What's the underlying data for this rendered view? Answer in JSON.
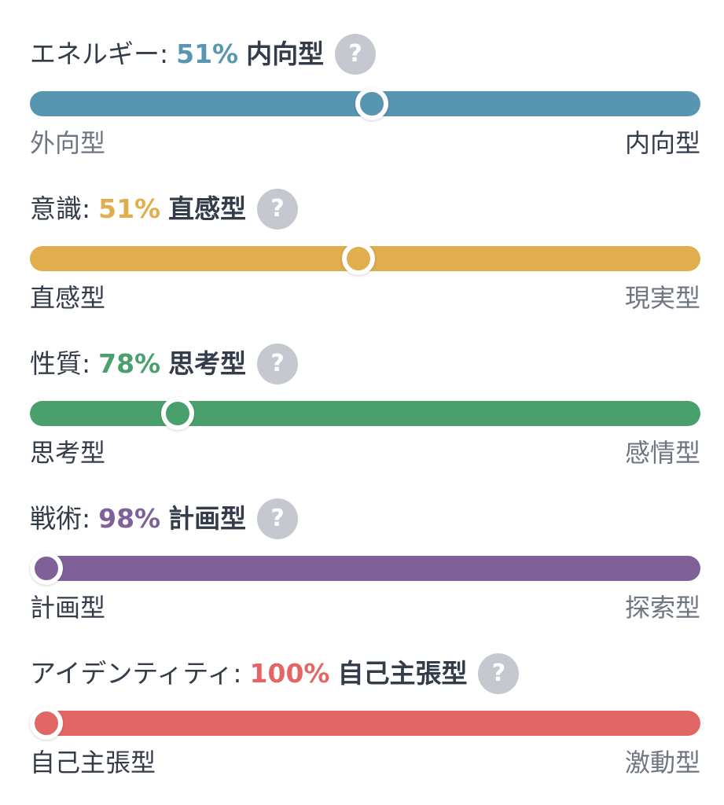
{
  "traits": [
    {
      "name": "エネルギー",
      "colon": ":",
      "percent": "51%",
      "percent_value": 51,
      "type": "内向型",
      "left_label": "外向型",
      "right_label": "内向型",
      "active_side": "right",
      "marker_fraction": 0.51,
      "color": "#5895b1",
      "help_icon": "question-mark-icon"
    },
    {
      "name": "意識",
      "colon": ":",
      "percent": "51%",
      "percent_value": 51,
      "type": "直感型",
      "left_label": "直感型",
      "right_label": "現実型",
      "active_side": "left",
      "marker_fraction": 0.49,
      "color": "#e0ae4c",
      "help_icon": "question-mark-icon"
    },
    {
      "name": "性質",
      "colon": ":",
      "percent": "78%",
      "percent_value": 78,
      "type": "思考型",
      "left_label": "思考型",
      "right_label": "感情型",
      "active_side": "left",
      "marker_fraction": 0.22,
      "color": "#4aa06d",
      "help_icon": "question-mark-icon"
    },
    {
      "name": "戦術",
      "colon": ":",
      "percent": "98%",
      "percent_value": 98,
      "type": "計画型",
      "left_label": "計画型",
      "right_label": "探索型",
      "active_side": "left",
      "marker_fraction": 0.02,
      "color": "#7f6197",
      "help_icon": "question-mark-icon"
    },
    {
      "name": "アイデンティティ",
      "colon": ":",
      "percent": "100%",
      "percent_value": 100,
      "type": "自己主張型",
      "left_label": "自己主張型",
      "right_label": "激動型",
      "active_side": "left",
      "marker_fraction": 0.0,
      "color": "#e26666",
      "help_icon": "question-mark-icon"
    }
  ],
  "help_glyph": "?"
}
